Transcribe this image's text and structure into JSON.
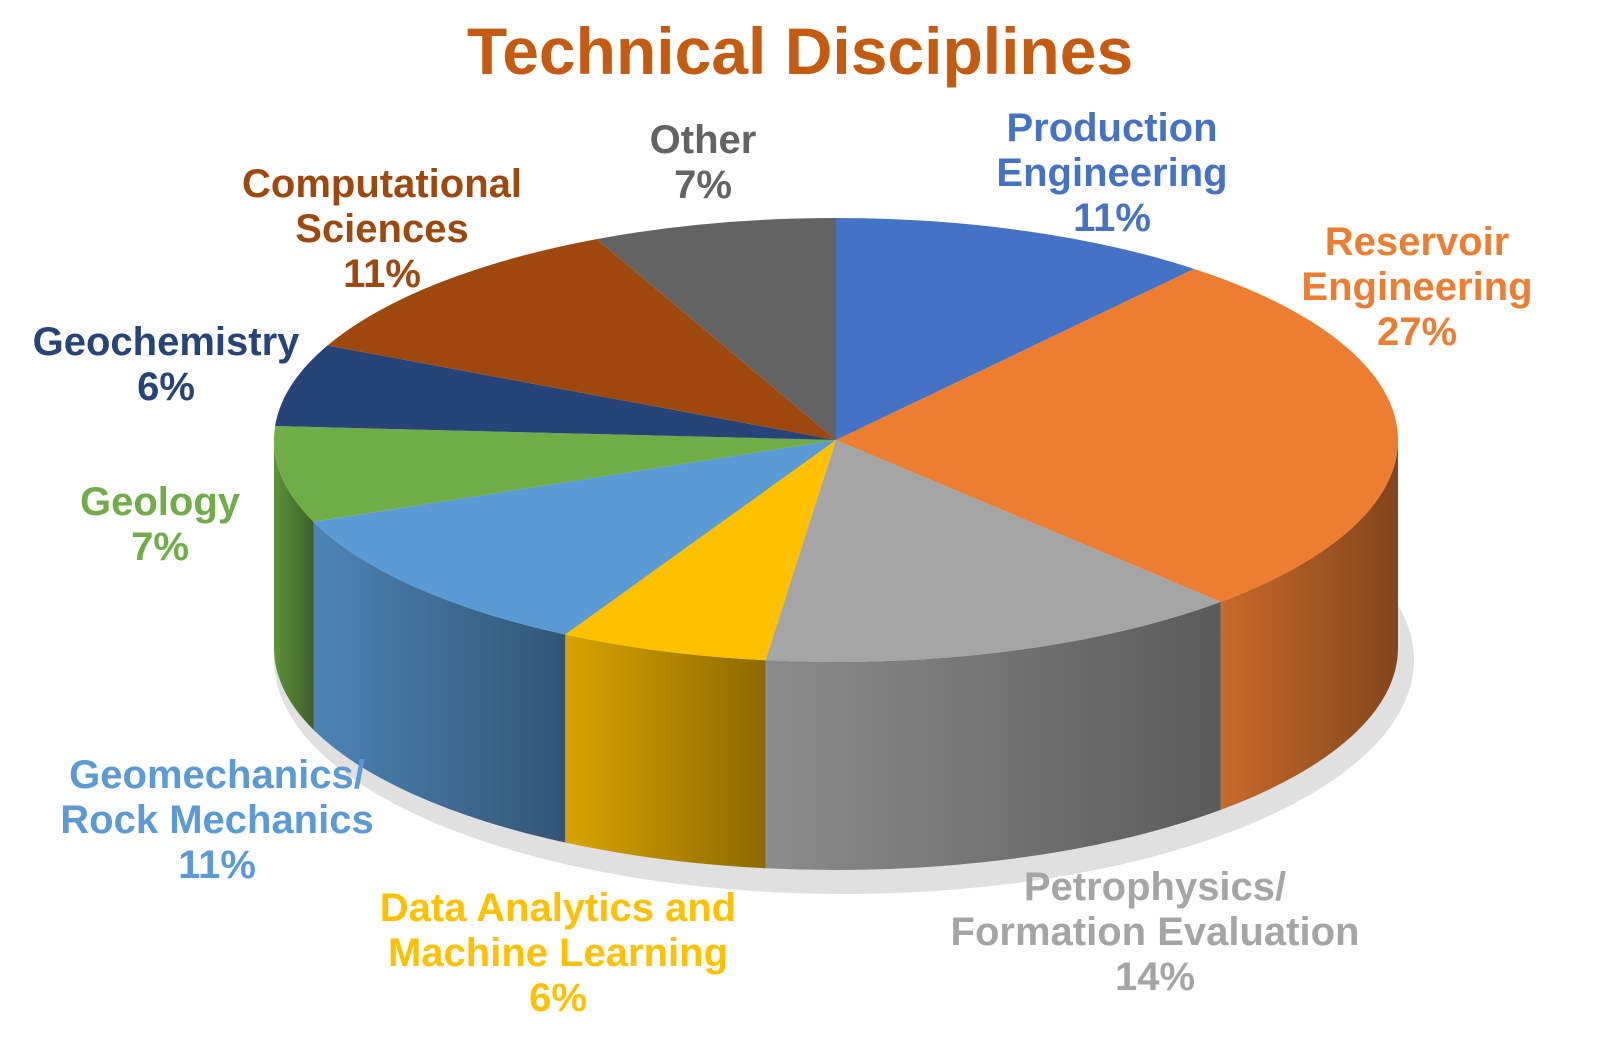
{
  "chart_data": {
    "type": "pie",
    "title": "Technical Disciplines",
    "title_color": "#C55A11",
    "slices": [
      {
        "label_lines": [
          "Production",
          "Engineering"
        ],
        "percent_label": "11%",
        "value": 11,
        "color": "#4472C4"
      },
      {
        "label_lines": [
          "Reservoir",
          "Engineering"
        ],
        "percent_label": "27%",
        "value": 27,
        "color": "#ED7D31"
      },
      {
        "label_lines": [
          "Petrophysics/",
          "Formation Evaluation"
        ],
        "percent_label": "14%",
        "value": 14,
        "color": "#A5A5A5"
      },
      {
        "label_lines": [
          "Data Analytics and",
          "Machine Learning"
        ],
        "percent_label": "6%",
        "value": 6,
        "color": "#FFC000"
      },
      {
        "label_lines": [
          "Geomechanics/",
          "Rock Mechanics"
        ],
        "percent_label": "11%",
        "value": 11,
        "color": "#5B9BD5"
      },
      {
        "label_lines": [
          "Geology"
        ],
        "percent_label": "7%",
        "value": 7,
        "color": "#70AD47"
      },
      {
        "label_lines": [
          "Geochemistry"
        ],
        "percent_label": "6%",
        "value": 6,
        "color": "#264478"
      },
      {
        "label_lines": [
          "Computational",
          "Sciences"
        ],
        "percent_label": "11%",
        "value": 11,
        "color": "#9E480E"
      },
      {
        "label_lines": [
          "Other"
        ],
        "percent_label": "7%",
        "value": 7,
        "color": "#636363"
      }
    ],
    "legend": "none",
    "style": "3d-pie"
  }
}
